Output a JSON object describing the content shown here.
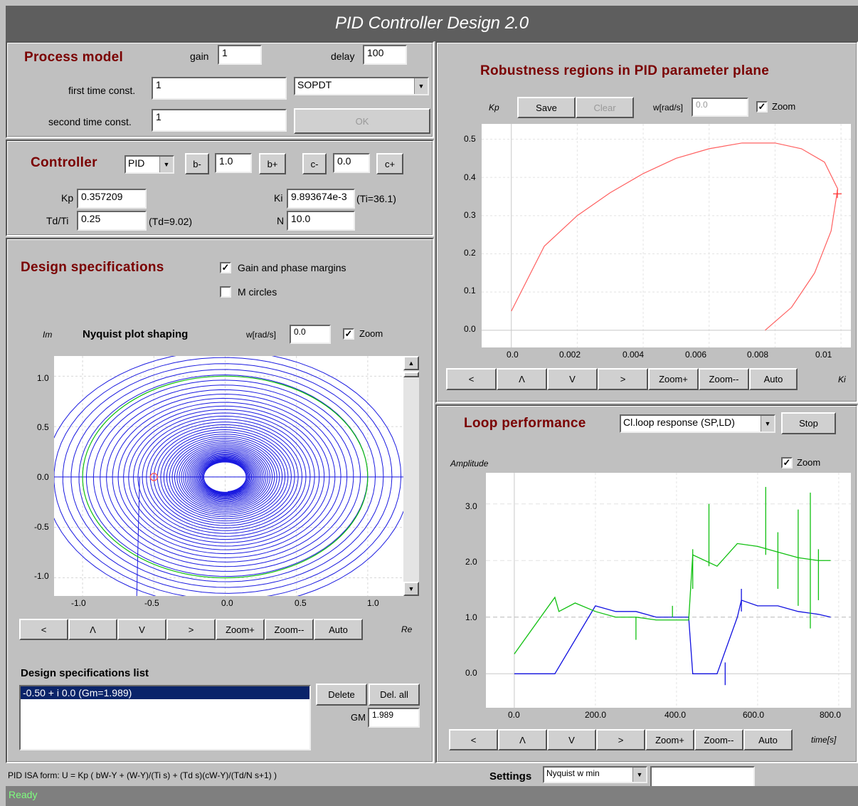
{
  "app": {
    "title": "PID Controller Design 2.0"
  },
  "process_model": {
    "title": "Process model",
    "gain_label": "gain",
    "gain_value": "1",
    "delay_label": "delay",
    "delay_value": "100",
    "first_tc_label": "first time const.",
    "first_tc_value": "1",
    "second_tc_label": "second time const.",
    "second_tc_value": "1",
    "model_type": "SOPDT",
    "ok_label": "OK"
  },
  "controller": {
    "title": "Controller",
    "type": "PID",
    "b_minus": "b-",
    "b_value": "1.0",
    "b_plus": "b+",
    "c_minus": "c-",
    "c_value": "0.0",
    "c_plus": "c+",
    "kp_label": "Kp",
    "kp_value": "0.357209",
    "ki_label": "Ki",
    "ki_value": "9.893674e-3",
    "ti_note": "(Ti=36.1)",
    "tdti_label": "Td/Ti",
    "tdti_value": "0.25",
    "td_note": "(Td=9.02)",
    "n_label": "N",
    "n_value": "10.0"
  },
  "design_specs": {
    "title": "Design specifications",
    "gain_phase_label": "Gain and phase margins",
    "gain_phase_checked": true,
    "mcircles_label": "M circles",
    "mcircles_checked": false,
    "nyquist": {
      "ylabel": "Im",
      "title": "Nyquist plot shaping",
      "w_label": "w[rad/s]",
      "w_value": "0.0",
      "zoom_label": "Zoom",
      "zoom_checked": true,
      "xlabel": "Re",
      "xticks": [
        "-1.0",
        "-0.5",
        "0.0",
        "0.5",
        "1.0"
      ],
      "yticks": [
        "1.0",
        "0.5",
        "0.0",
        "-0.5",
        "-1.0"
      ],
      "buttons": [
        "<",
        "Λ",
        "V",
        ">",
        "Zoom+",
        "Zoom--",
        "Auto"
      ]
    },
    "list_title": "Design specifications list",
    "list_items": [
      "-0.50 + i 0.0  (Gm=1.989)"
    ],
    "delete_label": "Delete",
    "delall_label": "Del. all",
    "gm_label": "GM",
    "gm_value": "1.989"
  },
  "robustness": {
    "title": "Robustness regions in PID parameter plane",
    "ylabel": "Kp",
    "save_label": "Save",
    "clear_label": "Clear",
    "w_label": "w[rad/s]",
    "w_value": "0.0",
    "zoom_label": "Zoom",
    "zoom_checked": true,
    "xlabel": "Ki",
    "xticks": [
      "0.0",
      "0.002",
      "0.004",
      "0.006",
      "0.008",
      "0.01"
    ],
    "yticks": [
      "0.5",
      "0.4",
      "0.3",
      "0.2",
      "0.1",
      "0.0"
    ],
    "buttons": [
      "<",
      "Λ",
      "V",
      ">",
      "Zoom+",
      "Zoom--",
      "Auto"
    ],
    "colors": {
      "curve": "#ff6060"
    }
  },
  "loop": {
    "title": "Loop performance",
    "response_type": "Cl.loop response (SP,LD)",
    "stop_label": "Stop",
    "ylabel": "Amplitude",
    "zoom_label": "Zoom",
    "zoom_checked": true,
    "xlabel": "time[s]",
    "xticks": [
      "0.0",
      "200.0",
      "400.0",
      "600.0",
      "800.0"
    ],
    "yticks": [
      "3.0",
      "2.0",
      "1.0",
      "0.0"
    ],
    "buttons": [
      "<",
      "Λ",
      "V",
      ">",
      "Zoom+",
      "Zoom--",
      "Auto"
    ],
    "colors": {
      "output": "#1010e0",
      "control": "#10c010"
    }
  },
  "footer": {
    "formula": "PID ISA form:  U = Kp ( bW-Y + (W-Y)/(Ti s) + (Td s)(cW-Y)/(Td/N s+1) )",
    "settings_label": "Settings",
    "settings_value": "Nyquist w min",
    "settings_input": "",
    "status": "Ready"
  },
  "chart_data": [
    {
      "type": "line",
      "title": "Nyquist plot shaping",
      "xlabel": "Re",
      "ylabel": "Im",
      "xlim": [
        -1.2,
        1.25
      ],
      "ylim": [
        -1.18,
        1.2
      ],
      "series": [
        {
          "values_desc": "unit circle",
          "x": [
            1.0,
            0.0,
            -1.0,
            0.0,
            1.0
          ],
          "y": [
            0.0,
            1.0,
            0.0,
            -1.0,
            0.0
          ]
        }
      ],
      "markers": [
        {
          "x": -0.5,
          "y": 0.0
        }
      ]
    },
    {
      "type": "line",
      "title": "Robustness regions in PID parameter plane",
      "xlabel": "Ki",
      "ylabel": "Kp",
      "xlim": [
        -0.0009,
        0.0103
      ],
      "ylim": [
        -0.045,
        0.54
      ],
      "series": [
        {
          "x": [
            0.0,
            0.001,
            0.002,
            0.003,
            0.004,
            0.005,
            0.006,
            0.007,
            0.008,
            0.0088,
            0.0095,
            0.0099,
            0.0097,
            0.0092,
            0.0085,
            0.0077
          ],
          "y": [
            0.05,
            0.22,
            0.3,
            0.36,
            0.41,
            0.45,
            0.475,
            0.49,
            0.49,
            0.475,
            0.44,
            0.37,
            0.26,
            0.15,
            0.06,
            0.0
          ]
        }
      ],
      "markers": [
        {
          "x": 0.00989,
          "y": 0.357
        }
      ]
    },
    {
      "type": "line",
      "title": "Loop performance",
      "xlabel": "time[s]",
      "ylabel": "Amplitude",
      "xlim": [
        -70,
        830
      ],
      "ylim": [
        -0.6,
        3.55
      ],
      "series": [
        {
          "x": [
            0,
            100,
            100,
            200,
            250,
            300,
            350,
            400,
            430,
            440,
            500,
            550,
            560,
            600,
            650,
            700,
            750,
            780
          ],
          "y": [
            0,
            0,
            0.0,
            1.2,
            1.1,
            1.1,
            1.0,
            1.0,
            1.0,
            0.0,
            0.0,
            1.0,
            1.3,
            1.2,
            1.2,
            1.1,
            1.05,
            1.0
          ]
        },
        {
          "x": [
            0,
            100,
            110,
            150,
            200,
            250,
            300,
            350,
            400,
            430,
            440,
            500,
            550,
            600,
            650,
            700,
            750,
            780
          ],
          "y": [
            0.35,
            1.35,
            1.1,
            1.25,
            1.1,
            1.0,
            1.0,
            0.95,
            0.95,
            0.95,
            2.1,
            1.9,
            2.3,
            2.25,
            2.15,
            2.05,
            2.0,
            2.0
          ]
        }
      ]
    }
  ]
}
